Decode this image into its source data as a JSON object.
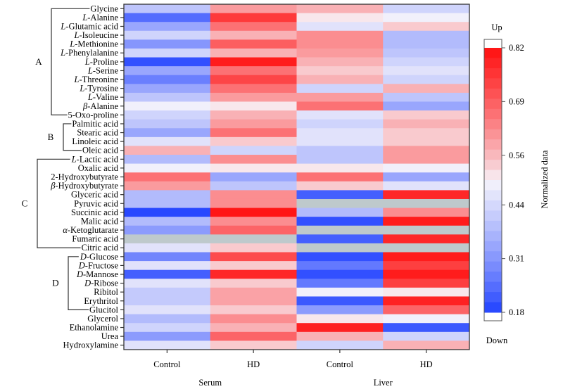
{
  "chart_data": {
    "type": "heatmap",
    "title": "",
    "colorbar": {
      "label": "Normalized data",
      "top_label": "Up",
      "bottom_label": "Down",
      "ticks": [
        0.82,
        0.69,
        0.56,
        0.44,
        0.31,
        0.18
      ],
      "range": [
        0.18,
        0.82
      ],
      "low_color": "#1a3cff",
      "mid_color": "#f7f5fb",
      "high_color": "#ff1010",
      "missing_color": "#bec9cc"
    },
    "columns": [
      {
        "tissue": "Serum",
        "group": "Control"
      },
      {
        "tissue": "Serum",
        "group": "HD"
      },
      {
        "tissue": "Liver",
        "group": "Control"
      },
      {
        "tissue": "Liver",
        "group": "HD"
      }
    ],
    "x_tick_labels": [
      "Control",
      "HD",
      "Control",
      "HD"
    ],
    "x_group_labels": [
      "Serum",
      "Liver"
    ],
    "rows": [
      {
        "prefix": "",
        "name": "Glycine",
        "values": [
          0.4,
          0.6,
          0.57,
          0.43
        ]
      },
      {
        "prefix": "L",
        "name": "-Alanine",
        "values": [
          0.24,
          0.75,
          0.51,
          0.49
        ]
      },
      {
        "prefix": "L",
        "name": "-Glutamic acid",
        "values": [
          0.34,
          0.66,
          0.46,
          0.54
        ]
      },
      {
        "prefix": "L",
        "name": "-Isoleucine",
        "values": [
          0.43,
          0.57,
          0.62,
          0.38
        ]
      },
      {
        "prefix": "L",
        "name": "-Methionine",
        "values": [
          0.31,
          0.69,
          0.62,
          0.38
        ]
      },
      {
        "prefix": "L",
        "name": "-Phenylalanine",
        "values": [
          0.43,
          0.57,
          0.6,
          0.4
        ]
      },
      {
        "prefix": "L",
        "name": "-Proline",
        "values": [
          0.2,
          0.8,
          0.57,
          0.43
        ]
      },
      {
        "prefix": "L",
        "name": "-Serine",
        "values": [
          0.34,
          0.66,
          0.54,
          0.46
        ]
      },
      {
        "prefix": "L",
        "name": "-Threonine",
        "values": [
          0.27,
          0.73,
          0.57,
          0.43
        ]
      },
      {
        "prefix": "L",
        "name": "-Tyrosine",
        "values": [
          0.34,
          0.66,
          0.43,
          0.57
        ]
      },
      {
        "prefix": "L",
        "name": "-Valine",
        "values": [
          0.4,
          0.6,
          0.6,
          0.4
        ]
      },
      {
        "prefix": "β",
        "name": "-Alanine",
        "values": [
          0.49,
          0.51,
          0.66,
          0.34
        ]
      },
      {
        "prefix": "",
        "name": "5-Oxo-proline",
        "values": [
          0.43,
          0.57,
          0.46,
          0.54
        ]
      },
      {
        "prefix": "",
        "name": "Palmitic acid",
        "values": [
          0.4,
          0.6,
          0.43,
          0.57
        ]
      },
      {
        "prefix": "",
        "name": "Stearic acid",
        "values": [
          0.34,
          0.66,
          0.46,
          0.54
        ]
      },
      {
        "prefix": "",
        "name": "Linoleic acid",
        "values": [
          0.46,
          0.54,
          0.46,
          0.54
        ]
      },
      {
        "prefix": "",
        "name": "Oleic acid",
        "values": [
          0.57,
          0.43,
          0.4,
          0.6
        ]
      },
      {
        "prefix": "L",
        "name": "-Lactic acid",
        "values": [
          0.38,
          0.62,
          0.4,
          0.6
        ]
      },
      {
        "prefix": "",
        "name": "Oxalic acid",
        "values": [
          0.49,
          0.51,
          0.51,
          0.49
        ]
      },
      {
        "prefix": "",
        "name": "2-Hydroxybutyrate",
        "values": [
          0.66,
          0.34,
          0.66,
          0.34
        ]
      },
      {
        "prefix": "β",
        "name": "-Hydroxybutyrate",
        "values": [
          0.6,
          0.4,
          0.54,
          0.46
        ]
      },
      {
        "prefix": "",
        "name": "Glyceric acid",
        "values": [
          0.38,
          0.62,
          0.22,
          0.78
        ]
      },
      {
        "prefix": "",
        "name": "Pyruvic acid",
        "values": [
          0.38,
          0.62,
          null,
          null
        ]
      },
      {
        "prefix": "",
        "name": "Succinic acid",
        "values": [
          0.19,
          0.81,
          0.38,
          0.62
        ]
      },
      {
        "prefix": "",
        "name": "Malic acid",
        "values": [
          0.38,
          0.62,
          0.2,
          0.8
        ]
      },
      {
        "prefix": "α",
        "name": "-Ketoglutarate",
        "values": [
          0.32,
          0.68,
          null,
          null
        ]
      },
      {
        "prefix": "",
        "name": "Fumaric acid",
        "values": [
          null,
          null,
          0.22,
          0.78
        ]
      },
      {
        "prefix": "",
        "name": "Citric acid",
        "values": [
          0.46,
          0.54,
          null,
          null
        ]
      },
      {
        "prefix": "D",
        "name": "-Glucose",
        "values": [
          0.28,
          0.72,
          0.2,
          0.8
        ]
      },
      {
        "prefix": "D",
        "name": "-Fructose",
        "values": [
          0.46,
          0.54,
          0.26,
          0.74
        ]
      },
      {
        "prefix": "D",
        "name": "-Mannose",
        "values": [
          0.22,
          0.78,
          0.2,
          0.8
        ]
      },
      {
        "prefix": "D",
        "name": "-Ribose",
        "values": [
          0.46,
          0.54,
          0.26,
          0.74
        ]
      },
      {
        "prefix": "",
        "name": "Ribitol",
        "values": [
          0.41,
          0.59,
          0.49,
          0.51
        ]
      },
      {
        "prefix": "",
        "name": "Erythritol",
        "values": [
          0.41,
          0.59,
          0.21,
          0.79
        ]
      },
      {
        "prefix": "",
        "name": "Glucitol",
        "values": [
          0.46,
          0.54,
          0.32,
          0.68
        ]
      },
      {
        "prefix": "",
        "name": "Glycerol",
        "values": [
          0.38,
          0.62,
          0.51,
          0.49
        ]
      },
      {
        "prefix": "",
        "name": "Ethanolamine",
        "values": [
          0.43,
          0.57,
          0.79,
          0.21
        ]
      },
      {
        "prefix": "",
        "name": "Urea",
        "values": [
          0.32,
          0.68,
          0.57,
          0.43
        ]
      },
      {
        "prefix": "",
        "name": "Hydroxylamine",
        "values": [
          0.46,
          0.54,
          0.43,
          0.57
        ]
      }
    ],
    "groups": [
      {
        "label": "A",
        "first_row": 0,
        "last_row": 12
      },
      {
        "label": "B",
        "first_row": 13,
        "last_row": 16
      },
      {
        "label": "C",
        "first_row": 17,
        "last_row": 27
      },
      {
        "label": "D",
        "first_row": 28,
        "last_row": 34
      }
    ]
  }
}
